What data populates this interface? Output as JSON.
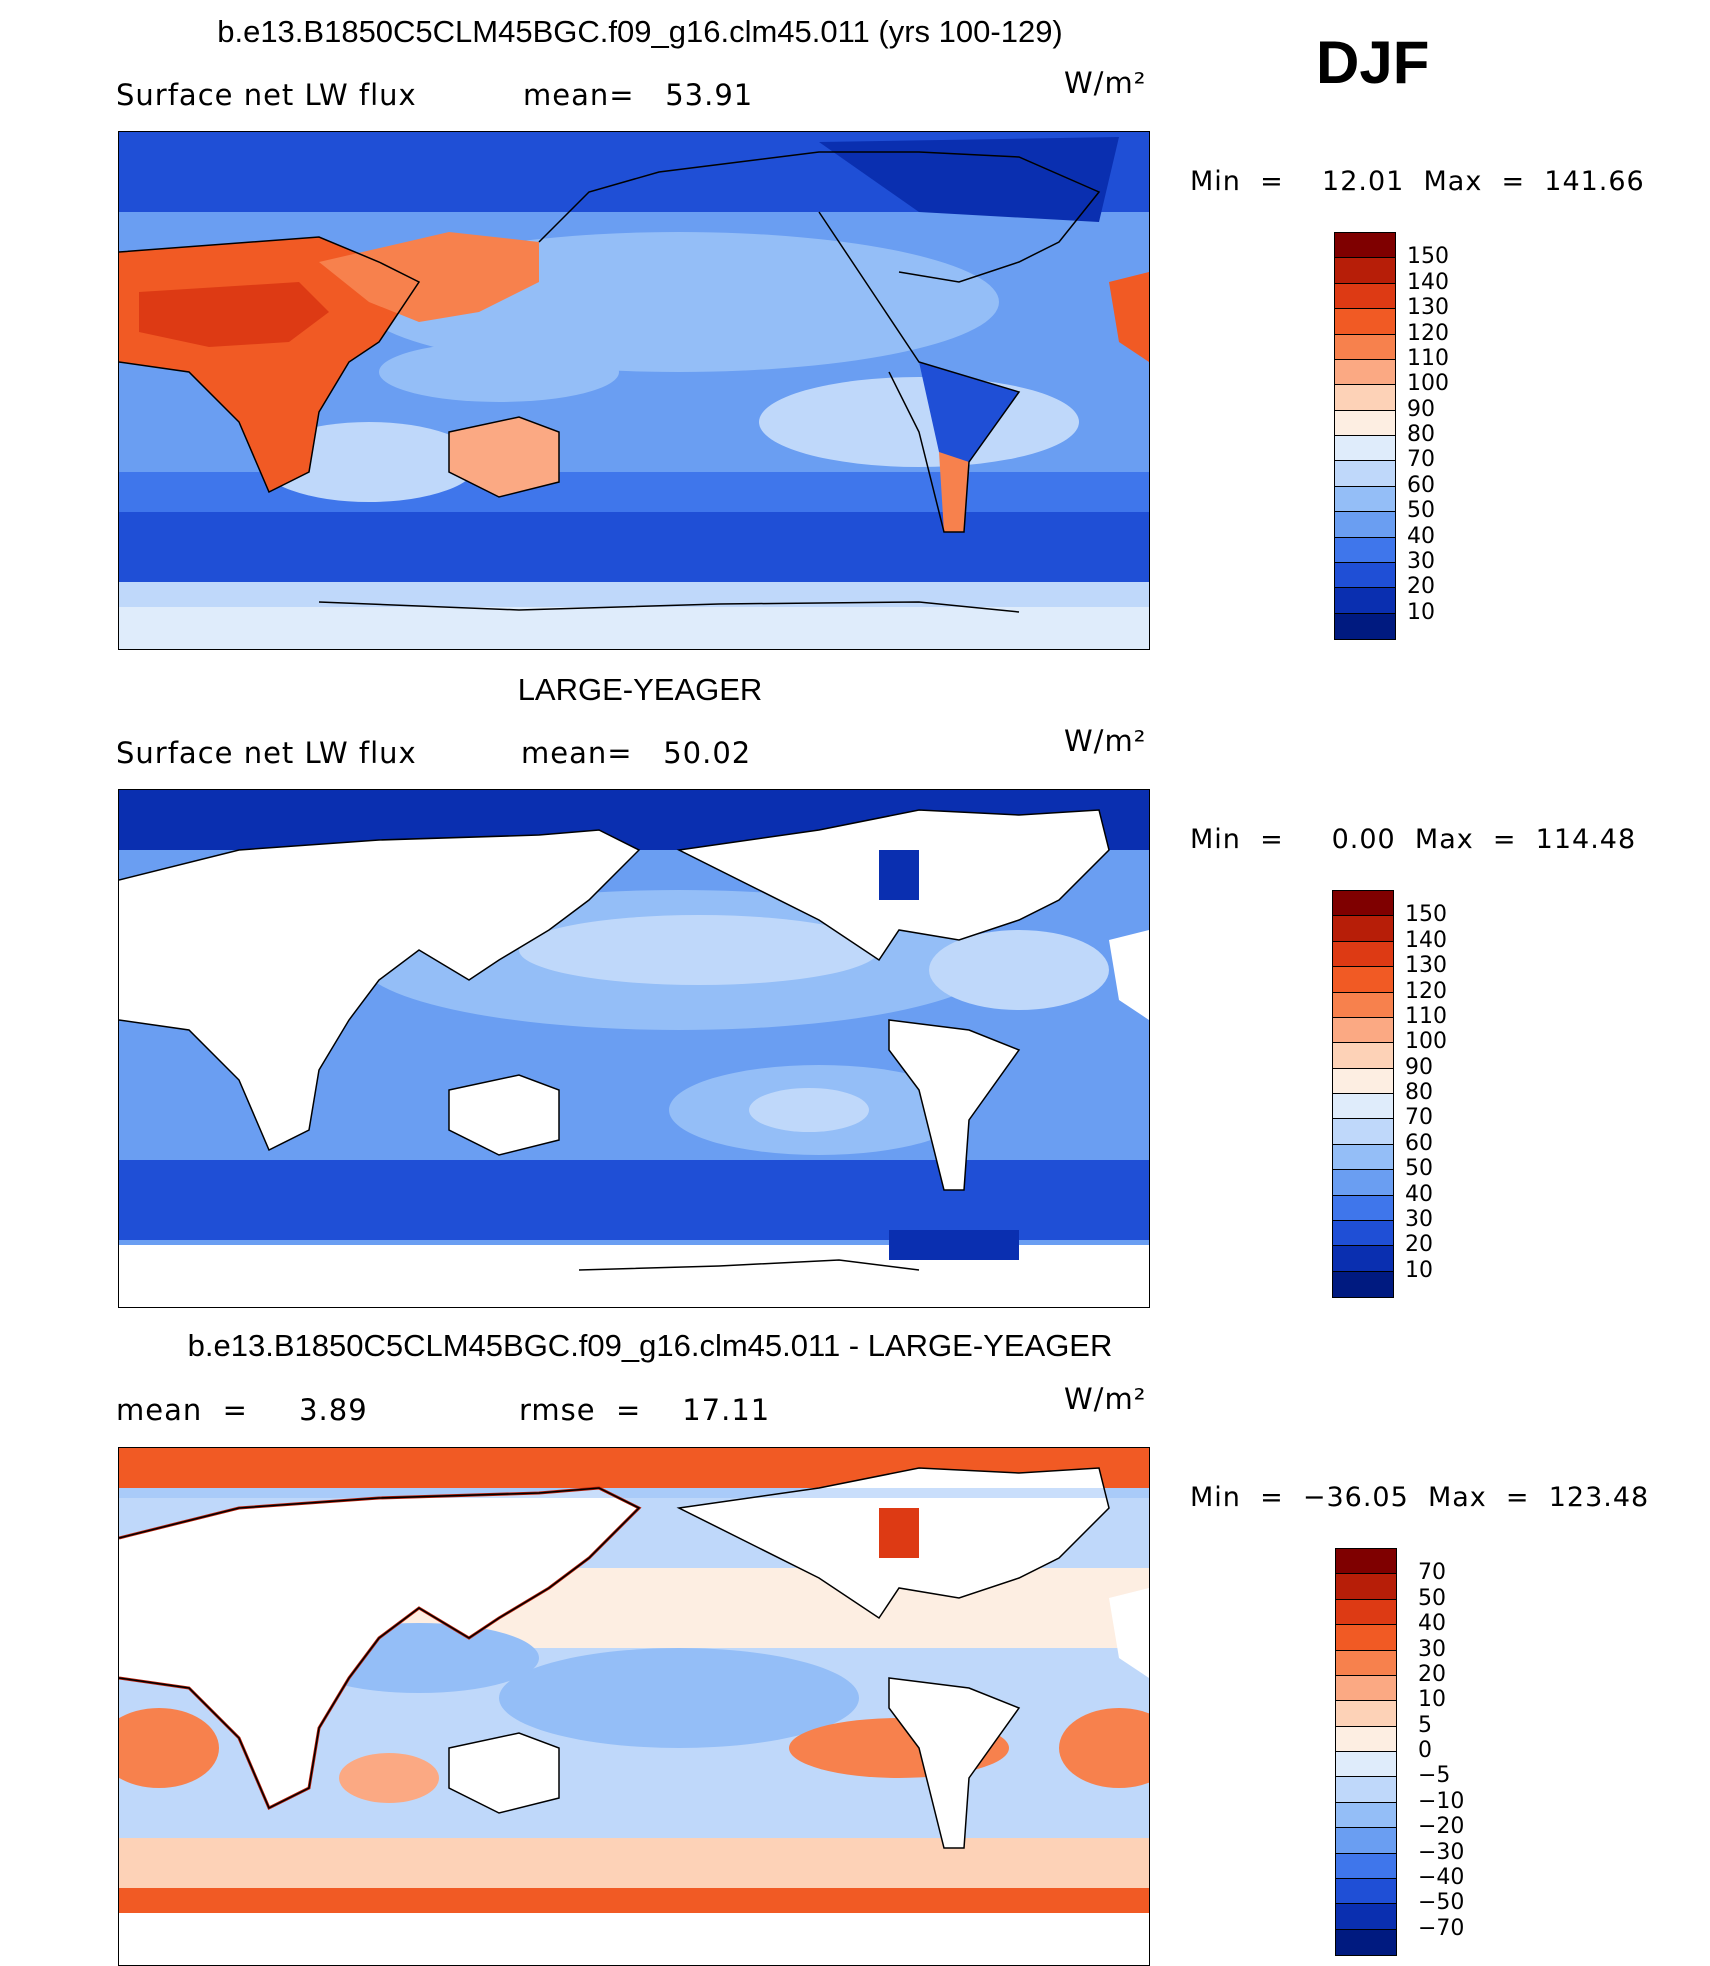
{
  "season": "DJF",
  "panels": [
    {
      "title": "b.e13.B1850C5CLM45BGC.f09_g16.clm45.011 (yrs 100-129)",
      "variable": "Surface net LW flux",
      "stat1": "mean=   53.91",
      "stat2": "",
      "units": "W/m²",
      "minmax": "Min  =    12.01  Max  =  141.66",
      "colorbar": {
        "labels": [
          "150",
          "140",
          "130",
          "120",
          "110",
          "100",
          "90",
          "80",
          "70",
          "60",
          "50",
          "40",
          "30",
          "20",
          "10"
        ],
        "colors": [
          "#7f0000",
          "#b71e08",
          "#dd3a14",
          "#f15a24",
          "#f7814d",
          "#fba983",
          "#fdd2b7",
          "#fdeee2",
          "#dfecfb",
          "#bfd8fa",
          "#94bef7",
          "#6a9ef2",
          "#3f76eb",
          "#1f4fd6",
          "#0a2fb0",
          "#001a80"
        ]
      }
    },
    {
      "title": "LARGE-YEAGER",
      "variable": "Surface net LW flux",
      "stat1": "mean=   50.02",
      "stat2": "",
      "units": "W/m²",
      "minmax": "Min  =     0.00  Max  =  114.48",
      "colorbar": {
        "labels": [
          "150",
          "140",
          "130",
          "120",
          "110",
          "100",
          "90",
          "80",
          "70",
          "60",
          "50",
          "40",
          "30",
          "20",
          "10"
        ],
        "colors": [
          "#7f0000",
          "#b71e08",
          "#dd3a14",
          "#f15a24",
          "#f7814d",
          "#fba983",
          "#fdd2b7",
          "#fdeee2",
          "#dfecfb",
          "#bfd8fa",
          "#94bef7",
          "#6a9ef2",
          "#3f76eb",
          "#1f4fd6",
          "#0a2fb0",
          "#001a80"
        ]
      }
    },
    {
      "title": "b.e13.B1850C5CLM45BGC.f09_g16.clm45.011 - LARGE-YEAGER",
      "variable": "mean  =     3.89",
      "stat1": "rmse  =    17.11",
      "stat2": "",
      "units": "W/m²",
      "minmax": "Min  =  −36.05  Max  =  123.48",
      "colorbar": {
        "labels": [
          "70",
          "50",
          "40",
          "30",
          "20",
          "10",
          "5",
          "0",
          "−5",
          "−10",
          "−20",
          "−30",
          "−40",
          "−50",
          "−70"
        ],
        "colors": [
          "#7f0000",
          "#b71e08",
          "#dd3a14",
          "#f15a24",
          "#f7814d",
          "#fba983",
          "#fdd2b7",
          "#fdeee2",
          "#dfecfb",
          "#bfd8fa",
          "#94bef7",
          "#6a9ef2",
          "#3f76eb",
          "#1f4fd6",
          "#0a2fb0",
          "#001a80"
        ]
      }
    }
  ],
  "map_colors": {
    "deep_blue": "#0a2fb0",
    "mid_blue": "#3f76eb",
    "light_blue": "#94bef7",
    "pale_blue": "#dfecfb",
    "pale_orange": "#fdd2b7",
    "orange": "#f15a24",
    "land_mask": "#ffffff"
  }
}
